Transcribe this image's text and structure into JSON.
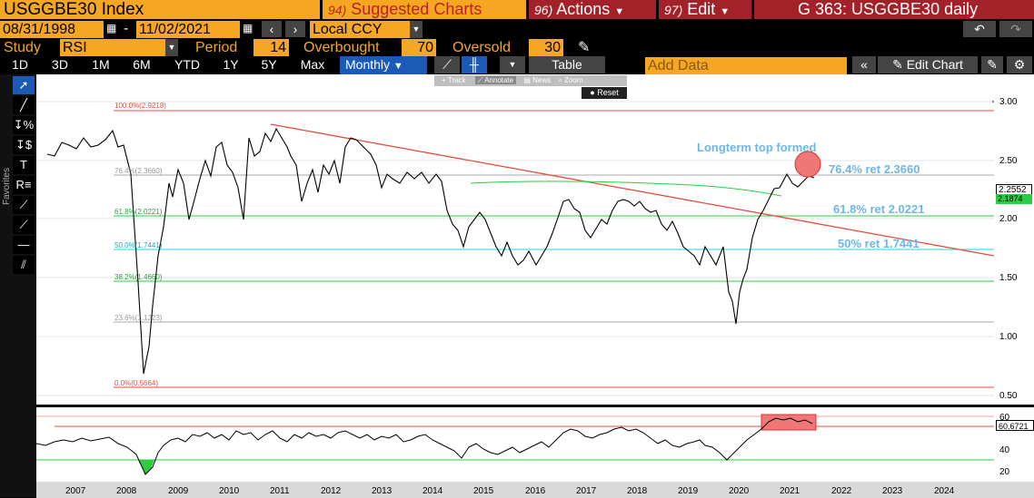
{
  "header": {
    "ticker": "USGGBE30 Index",
    "menu_suggested_num": "94)",
    "menu_suggested": "Suggested Charts",
    "menu_actions_num": "96)",
    "menu_actions": "Actions",
    "menu_edit_num": "97)",
    "menu_edit": "Edit",
    "title": "G 363: USGGBE30 daily"
  },
  "range": {
    "start": "08/31/1998",
    "sep": "-",
    "end": "11/02/2021",
    "currency": "Local CCY"
  },
  "study": {
    "study_label": "Study",
    "study_value": "RSI",
    "period_label": "Period",
    "period_value": "14",
    "overbought_label": "Overbought",
    "overbought_value": "70",
    "oversold_label": "Oversold",
    "oversold_value": "30"
  },
  "periods": [
    "1D",
    "3D",
    "1M",
    "6M",
    "YTD",
    "1Y",
    "5Y",
    "Max"
  ],
  "frequency": "Monthly",
  "table_label": "Table",
  "add_data_placeholder": "Add Data",
  "edit_chart_label": "Edit Chart",
  "overlay_toolbar": {
    "track": "Track",
    "annotate": "Annotate",
    "news": "News",
    "zoom": "Zoom",
    "reset": "Reset"
  },
  "sidebar": {
    "favorites": "Favorites"
  },
  "fib_labels": {
    "f100": "100.0%(2.9218)",
    "f76": "76.4%(2.3660)",
    "f61": "61.8%(2.0221)",
    "f50": "50.0%(1.7441)",
    "f38": "38.2%(1.4660)",
    "f23": "23.6%(1.1223)",
    "f0": "0.0%(0.5664)"
  },
  "annotations": {
    "top": "Longterm top formed",
    "r76": "76.4% ret 2.3660",
    "r61": "61.8% ret 2.0221",
    "r50": "50% ret 1.7441"
  },
  "price_axis": [
    "3.00",
    "2.50",
    "2.00",
    "1.50",
    "1.00",
    "0.50"
  ],
  "last_price": "2.2552",
  "ma_value": "2.1874",
  "rsi_axis": [
    "60",
    "40",
    "20"
  ],
  "rsi_last": "60.6721",
  "x_axis": [
    "2007",
    "2008",
    "2009",
    "2010",
    "2011",
    "2012",
    "2013",
    "2014",
    "2015",
    "2016",
    "2017",
    "2018",
    "2019",
    "2020",
    "2021",
    "2022",
    "2023",
    "2024"
  ],
  "colors": {
    "orange": "#f5a623",
    "red_menu": "#a3222a",
    "fib_red": "#e74c3c",
    "fib_green": "#2ecc40",
    "fib_cyan": "#22d3e6",
    "trend": "#e74c3c",
    "annot": "#6fb6e8"
  }
}
